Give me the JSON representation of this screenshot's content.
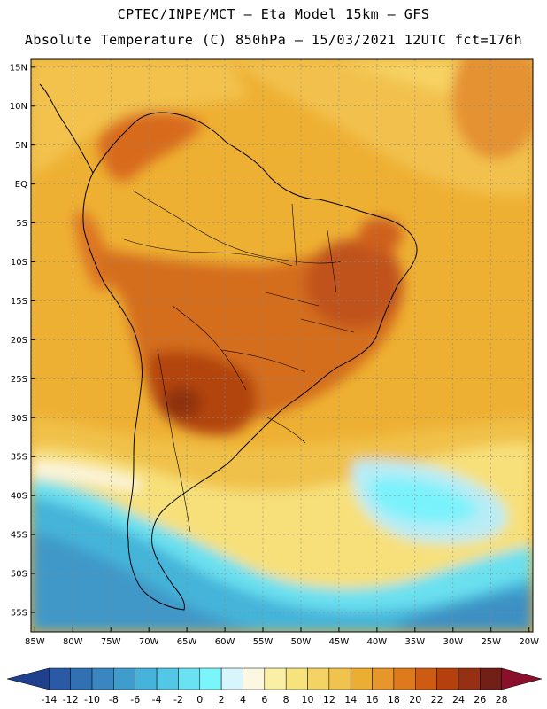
{
  "header": {
    "line1": "CPTEC/INPE/MCT —  Eta Model 15km — GFS",
    "line2": "Absolute Temperature (C) 850hPa — 15/03/2021 12UTC fct=176h"
  },
  "map": {
    "lat_labels": [
      "15N",
      "10N",
      "5N",
      "EQ",
      "5S",
      "10S",
      "15S",
      "20S",
      "25S",
      "30S",
      "35S",
      "40S",
      "45S",
      "50S",
      "55S"
    ],
    "lon_labels": [
      "85W",
      "80W",
      "75W",
      "70W",
      "65W",
      "60W",
      "55W",
      "50W",
      "45W",
      "40W",
      "35W",
      "30W",
      "25W",
      "20W"
    ],
    "extent": {
      "lon_min": -85.5,
      "lon_max": -19.5,
      "lat_min": -57.5,
      "lat_max": 16.0
    },
    "gridlines": "dotted"
  },
  "colorbar": {
    "labels": [
      "-14",
      "-12",
      "-10",
      "-8",
      "-6",
      "-4",
      "-2",
      "0",
      "2",
      "4",
      "6",
      "8",
      "10",
      "12",
      "14",
      "16",
      "18",
      "20",
      "22",
      "24",
      "26",
      "28"
    ],
    "colors": [
      "#1f3f8f",
      "#2a5aa5",
      "#3170b3",
      "#3a86c0",
      "#3f9dcd",
      "#46b3da",
      "#52c8e6",
      "#6be2f2",
      "#7af6fb",
      "#d6f6fb",
      "#fbf7e0",
      "#f9f0a6",
      "#f7e37e",
      "#f4d365",
      "#f0c34e",
      "#ecae32",
      "#e6962a",
      "#de7a1c",
      "#cf5b12",
      "#b5400d",
      "#953112",
      "#722017",
      "#8a0f2a"
    ],
    "units": "C"
  }
}
